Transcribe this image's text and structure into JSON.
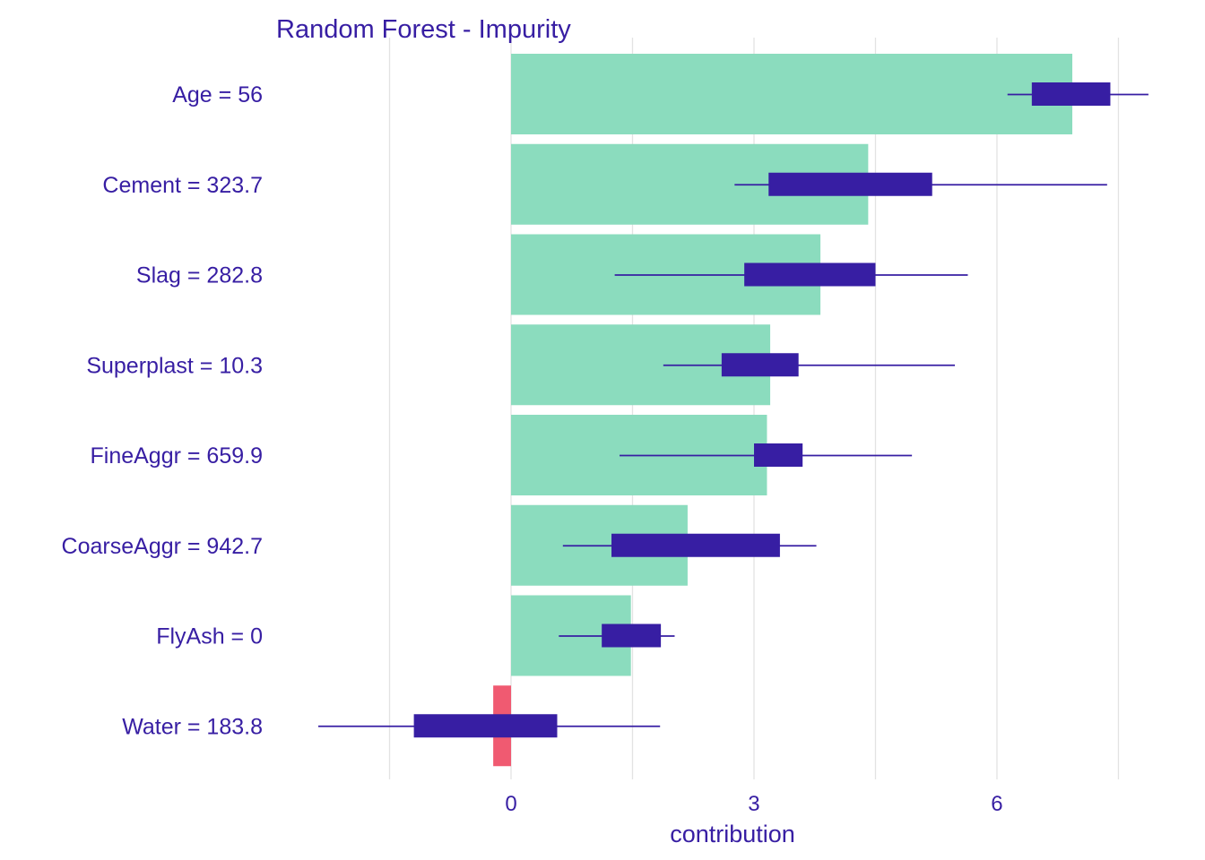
{
  "chart_data": {
    "type": "bar",
    "title": "Random Forest - Impurity",
    "xlabel": "contribution",
    "ylabel": "",
    "xlim": [
      -3.1,
      7.9
    ],
    "x_ticks": [
      0,
      3,
      6
    ],
    "x_ticks_labels": [
      "0",
      "3",
      "6"
    ],
    "grid": "vertical",
    "categories": [
      "Age = 56",
      "Cement = 323.7",
      "Slag = 282.8",
      "Superplast = 10.3",
      "FineAggr = 659.9",
      "CoarseAggr = 942.7",
      "FlyAsh = 0",
      "Water = 183.8"
    ],
    "values": [
      6.93,
      4.41,
      3.82,
      3.2,
      3.16,
      2.18,
      1.48,
      -0.22
    ],
    "boxplots": [
      {
        "min": 6.13,
        "q1": 6.43,
        "q3": 7.4,
        "max": 7.87
      },
      {
        "min": 2.76,
        "q1": 3.18,
        "q3": 5.2,
        "max": 7.36
      },
      {
        "min": 1.28,
        "q1": 2.88,
        "q3": 4.5,
        "max": 5.64
      },
      {
        "min": 1.88,
        "q1": 2.6,
        "q3": 3.55,
        "max": 5.48
      },
      {
        "min": 1.34,
        "q1": 3.0,
        "q3": 3.6,
        "max": 4.95
      },
      {
        "min": 0.64,
        "q1": 1.24,
        "q3": 3.32,
        "max": 3.77
      },
      {
        "min": 0.59,
        "q1": 1.12,
        "q3": 1.85,
        "max": 2.02
      },
      {
        "min": -2.38,
        "q1": -1.2,
        "q3": 0.57,
        "max": 1.84
      }
    ],
    "colors": {
      "positive": "#8BDCBE",
      "negative": "#F05A71",
      "box": "#371EA3",
      "text": "#371EA3",
      "grid": "#E3E3E3"
    }
  }
}
